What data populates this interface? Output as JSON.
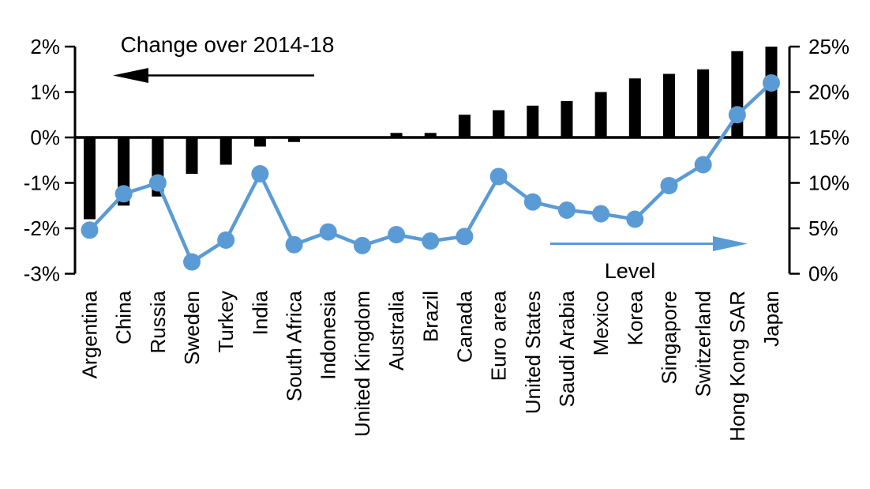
{
  "chart_data": {
    "type": "bar",
    "combo": [
      "bar",
      "line"
    ],
    "title": "",
    "categories": [
      "Argentina",
      "China",
      "Russia",
      "Sweden",
      "Turkey",
      "India",
      "South Africa",
      "Indonesia",
      "United Kingdom",
      "Australia",
      "Brazil",
      "Canada",
      "Euro area",
      "United States",
      "Saudi Arabia",
      "Mexico",
      "Korea",
      "Singapore",
      "Switzerland",
      "Hong Kong SAR",
      "Japan"
    ],
    "series": [
      {
        "name": "Change over 2014-18",
        "type": "bar",
        "axis": "left",
        "color": "#000000",
        "values": [
          -1.8,
          -1.5,
          -1.3,
          -0.8,
          -0.6,
          -0.2,
          -0.1,
          0,
          0,
          0.1,
          0.1,
          0.5,
          0.6,
          0.7,
          0.8,
          1.0,
          1.3,
          1.4,
          1.5,
          1.9,
          2.0
        ]
      },
      {
        "name": "Level",
        "type": "line",
        "axis": "right",
        "color": "#5B9BD5",
        "values": [
          4.8,
          8.8,
          10.0,
          1.3,
          3.7,
          11.0,
          3.2,
          4.6,
          3.1,
          4.3,
          3.6,
          4.1,
          10.7,
          7.9,
          7.0,
          6.6,
          6.0,
          9.7,
          12.0,
          17.5,
          21.0
        ]
      }
    ],
    "left_axis": {
      "unit": "%",
      "min": -3,
      "max": 2,
      "tick_step": 1,
      "tick_labels": [
        "2%",
        "1%",
        "0%",
        "-1%",
        "-2%",
        "-3%"
      ]
    },
    "right_axis": {
      "unit": "%",
      "min": 0,
      "max": 25,
      "tick_step": 5,
      "tick_labels": [
        "25%",
        "20%",
        "15%",
        "10%",
        "5%",
        "0%"
      ]
    },
    "grid": false,
    "legend_position": "none",
    "annotations": [
      {
        "id": "bar-annotation",
        "text": "Change over 2014-18",
        "arrow_direction": "left",
        "color": "#000000"
      },
      {
        "id": "line-annotation",
        "text": "Level",
        "arrow_direction": "right",
        "color": "#5B9BD5"
      }
    ]
  }
}
